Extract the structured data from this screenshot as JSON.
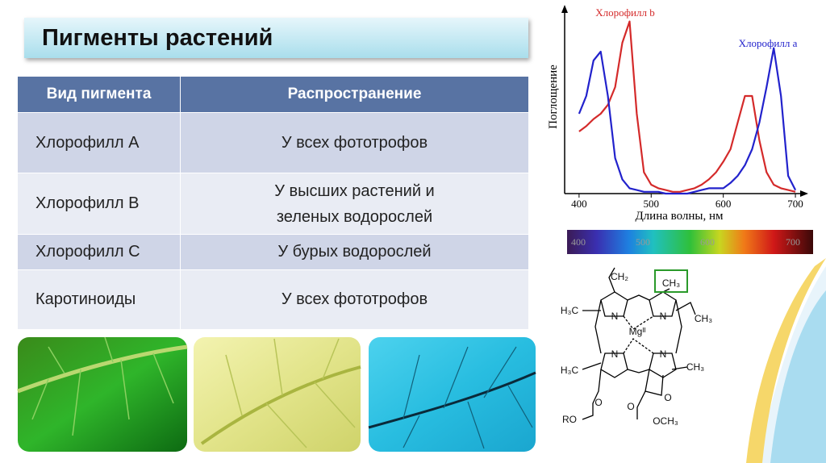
{
  "title": "Пигменты растений",
  "table": {
    "header": [
      "Вид пигмента",
      "Распространение"
    ],
    "rows": [
      [
        "Хлорофилл A",
        "У всех фототрофов"
      ],
      [
        "Хлорофилл B",
        "У высших растений и зеленых водорослей"
      ],
      [
        "Хлорофилл C",
        "У бурых водорослей"
      ],
      [
        "Каротиноиды",
        "У всех фототрофов"
      ]
    ]
  },
  "chart_data": {
    "type": "line",
    "y_label": "Поглощение",
    "x_label": "Длина волны, нм",
    "x": [
      400,
      410,
      420,
      430,
      440,
      450,
      460,
      470,
      480,
      490,
      500,
      510,
      520,
      530,
      540,
      550,
      560,
      570,
      580,
      590,
      600,
      610,
      620,
      630,
      640,
      650,
      660,
      670,
      680,
      690,
      700
    ],
    "series": [
      {
        "name": "Хлорофилл b",
        "color": "#d42a2a",
        "values": [
          35,
          38,
          42,
          45,
          50,
          60,
          85,
          97,
          45,
          12,
          5,
          3,
          2,
          1,
          1,
          2,
          3,
          5,
          8,
          12,
          18,
          25,
          40,
          55,
          55,
          30,
          12,
          5,
          3,
          2,
          1
        ]
      },
      {
        "name": "Хлорофилл a",
        "color": "#2222cc",
        "values": [
          45,
          55,
          75,
          80,
          55,
          20,
          8,
          3,
          2,
          1,
          1,
          1,
          0,
          0,
          0,
          0,
          1,
          2,
          3,
          3,
          3,
          6,
          10,
          16,
          25,
          40,
          60,
          82,
          55,
          10,
          2
        ]
      }
    ],
    "xlim": [
      380,
      710
    ],
    "ylim": [
      0,
      100
    ],
    "xticks": [
      400,
      500,
      600,
      700
    ]
  },
  "spectrum": {
    "labels": [
      "400",
      "500",
      "600",
      "700"
    ]
  },
  "structure": {
    "labels": [
      "CH₂",
      "CH₃",
      "H₃C",
      "CH₃",
      "N",
      "N",
      "N",
      "N",
      "Mgᴵᴵ",
      "H₃C",
      "CH₃",
      "O",
      "O",
      "O",
      "RO",
      "OCH₃"
    ]
  }
}
